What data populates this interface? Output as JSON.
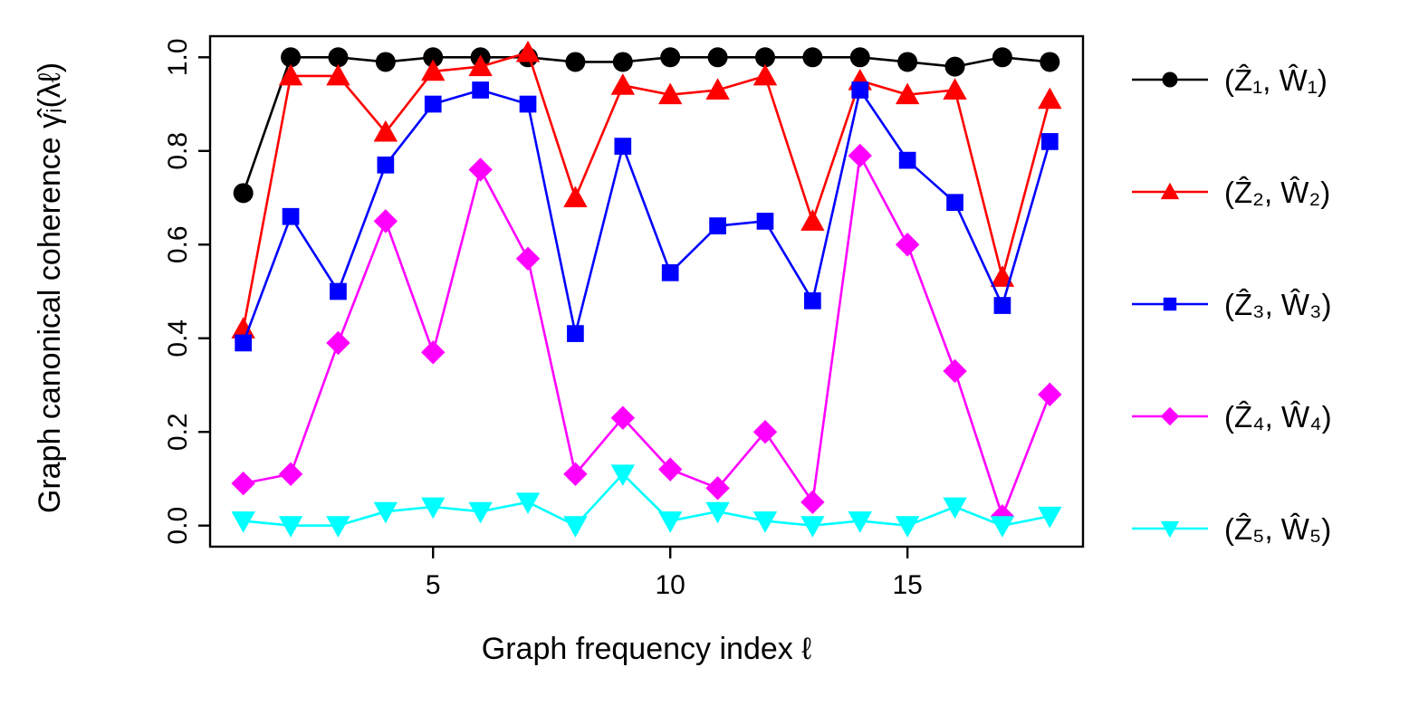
{
  "figure": {
    "background": "#ffffff"
  },
  "chart_data": {
    "type": "line",
    "title": "",
    "xlabel": "Graph frequency index ℓ",
    "ylabel": "Graph canonical coherence  γ̂ᵢ(λℓ)",
    "xticks": [
      5,
      10,
      15
    ],
    "yticks": [
      "0.0",
      "0.2",
      "0.4",
      "0.6",
      "0.8",
      "1.0"
    ],
    "xlim": [
      0.3,
      18.7
    ],
    "ylim": [
      -0.045,
      1.045
    ],
    "grid": false,
    "legend_position": "right",
    "x": [
      1,
      2,
      3,
      4,
      5,
      6,
      7,
      8,
      9,
      10,
      11,
      12,
      13,
      14,
      15,
      16,
      17,
      18
    ],
    "series": [
      {
        "name": "(Ẑ₁, Ŵ₁)",
        "color": "#000000",
        "marker": "circle",
        "values": [
          0.71,
          1.0,
          1.0,
          0.99,
          1.0,
          1.0,
          1.0,
          0.99,
          0.99,
          1.0,
          1.0,
          1.0,
          1.0,
          1.0,
          0.99,
          0.98,
          1.0,
          0.99
        ]
      },
      {
        "name": "(Ẑ₂, Ŵ₂)",
        "color": "#ff0000",
        "marker": "triangle-up",
        "values": [
          0.42,
          0.96,
          0.96,
          0.84,
          0.97,
          0.98,
          1.01,
          0.7,
          0.94,
          0.92,
          0.93,
          0.96,
          0.65,
          0.95,
          0.92,
          0.93,
          0.53,
          0.91
        ]
      },
      {
        "name": "(Ẑ₃, Ŵ₃)",
        "color": "#0000ff",
        "marker": "square",
        "values": [
          0.39,
          0.66,
          0.5,
          0.77,
          0.9,
          0.93,
          0.9,
          0.41,
          0.81,
          0.54,
          0.64,
          0.65,
          0.48,
          0.93,
          0.78,
          0.69,
          0.47,
          0.82
        ]
      },
      {
        "name": "(Ẑ₄, Ŵ₄)",
        "color": "#ff00ff",
        "marker": "diamond",
        "values": [
          0.09,
          0.11,
          0.39,
          0.65,
          0.37,
          0.76,
          0.57,
          0.11,
          0.23,
          0.12,
          0.08,
          0.2,
          0.05,
          0.79,
          0.6,
          0.33,
          0.02,
          0.28
        ]
      },
      {
        "name": "(Ẑ₅, Ŵ₅)",
        "color": "#00ffff",
        "marker": "triangle-down",
        "values": [
          0.01,
          0.0,
          0.0,
          0.03,
          0.04,
          0.03,
          0.05,
          0.0,
          0.11,
          0.01,
          0.03,
          0.01,
          0.0,
          0.01,
          0.0,
          0.04,
          0.0,
          0.02
        ]
      }
    ]
  }
}
